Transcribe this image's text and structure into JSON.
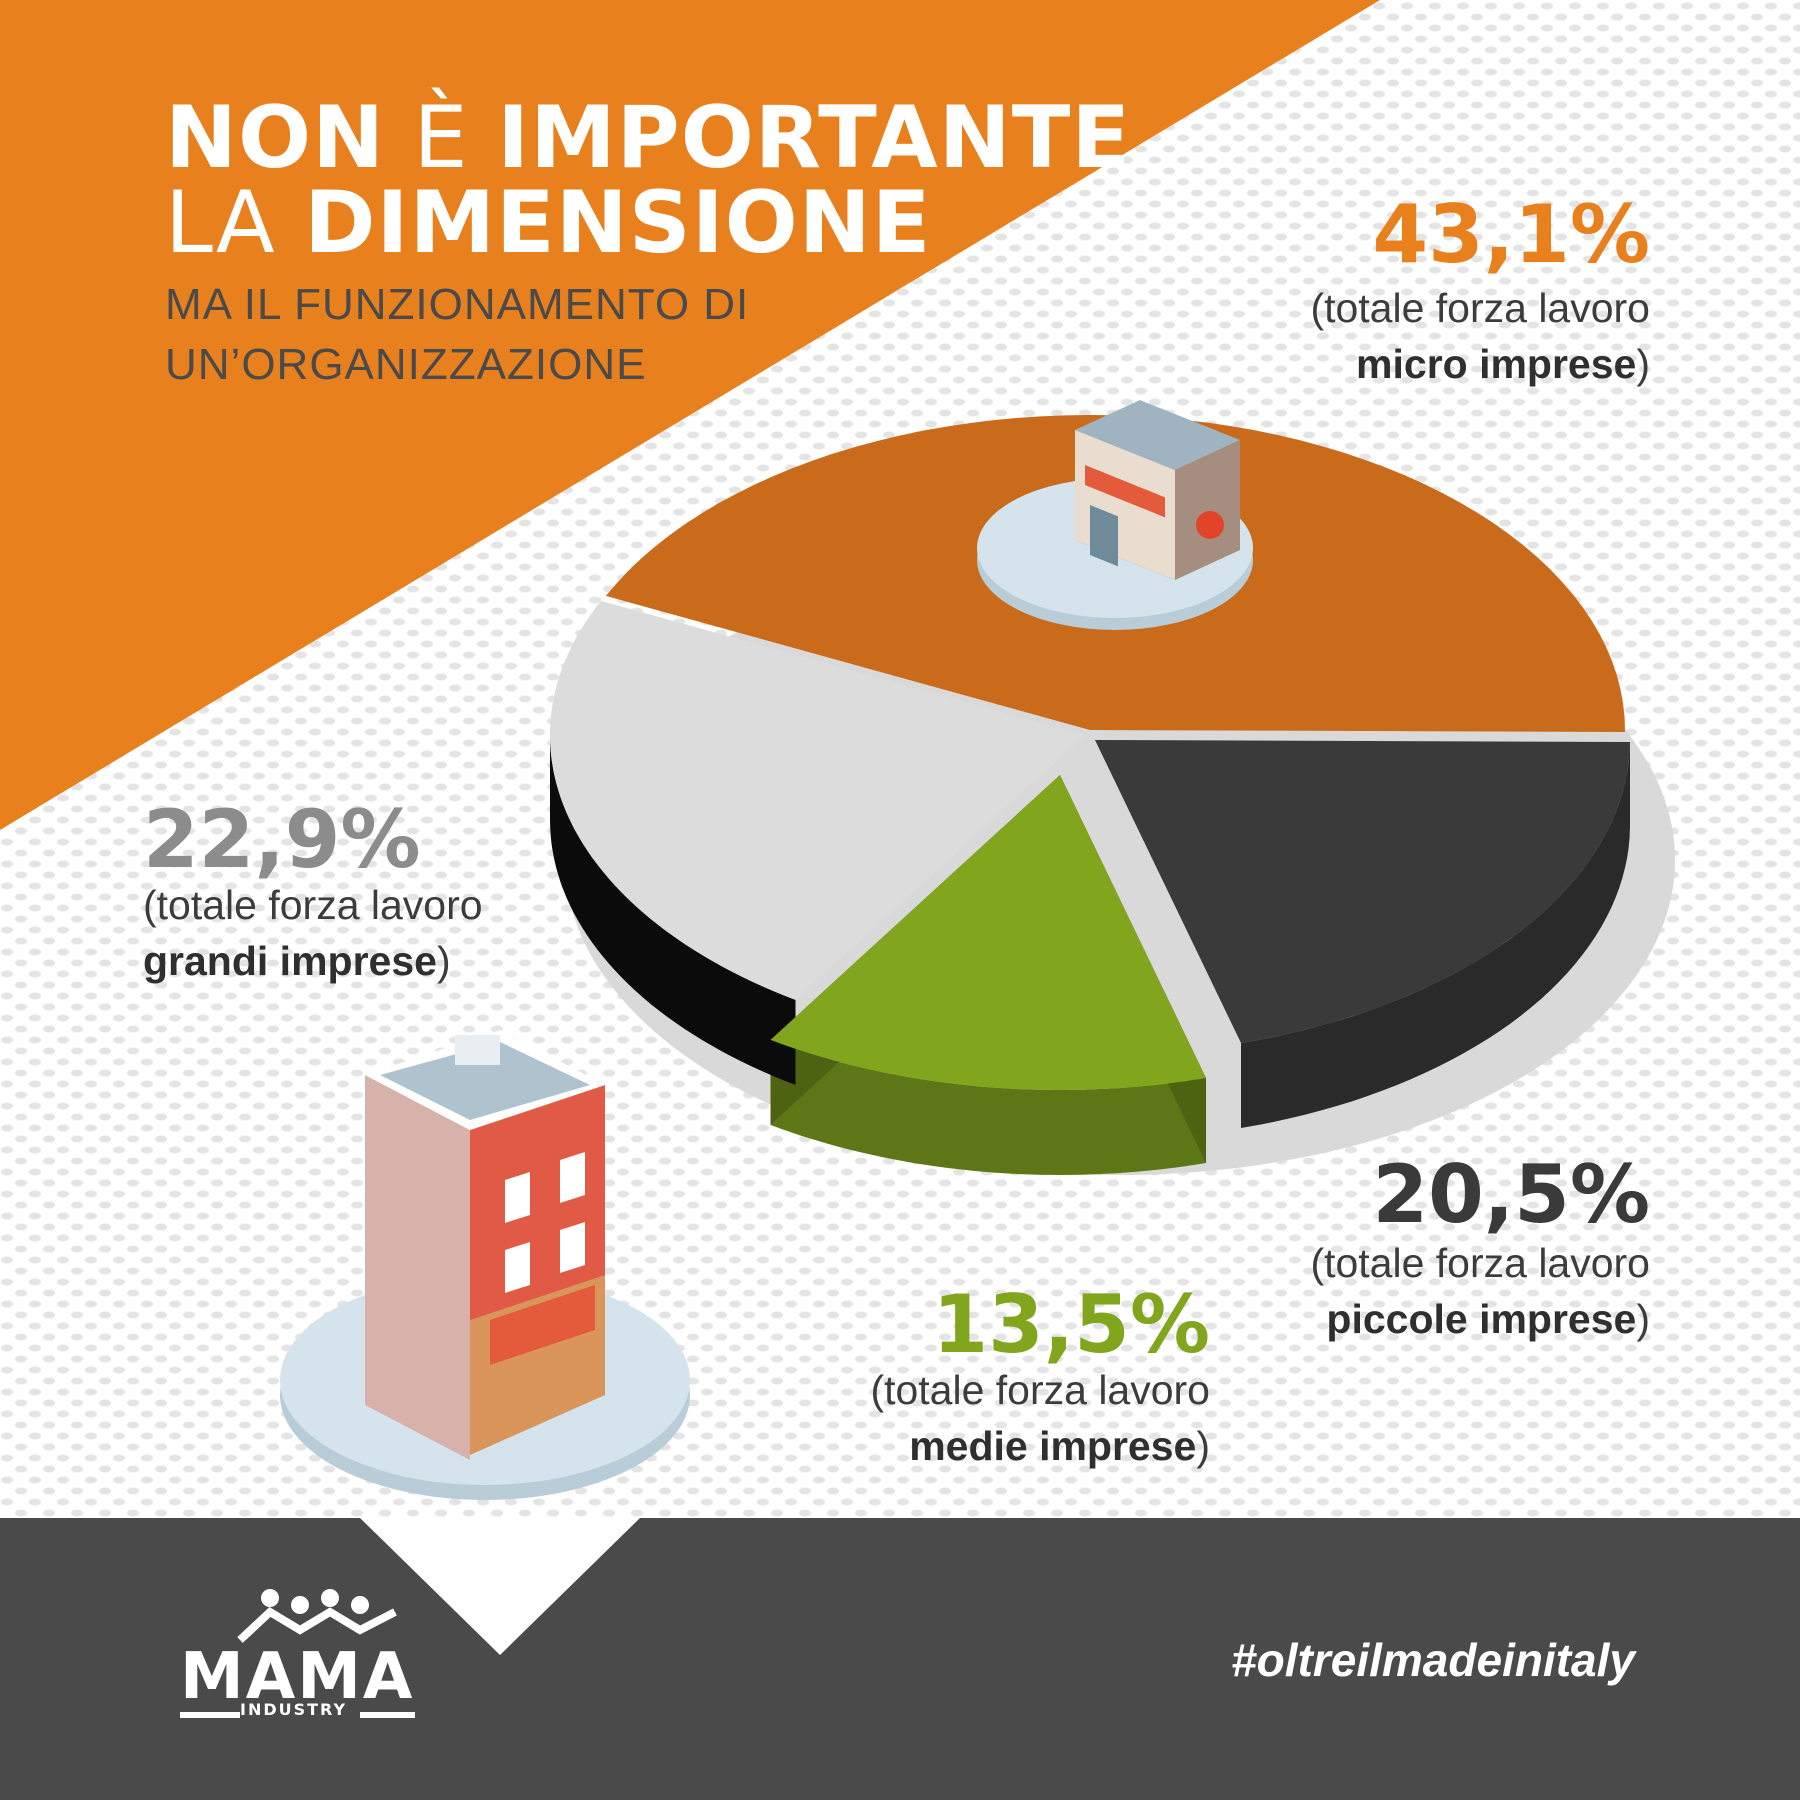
{
  "header": {
    "title_line1_bold_a": "NON",
    "title_line1_light": "È",
    "title_line1_bold_b": "IMPORTANTE",
    "title_line2_light": "LA",
    "title_line2_bold": "DIMENSIONE",
    "subtitle_line1": "MA IL FUNZIONAMENTO DI",
    "subtitle_line2": "UN’ORGANIZZAZIONE"
  },
  "colors": {
    "orange": "#E8801E",
    "orange_slice": "#C96B1A",
    "dark_slice": "#3A3A3A",
    "light_slice": "#DCDCDC",
    "green_slice": "#82A51E",
    "footer": "#4A4A4A"
  },
  "labels": {
    "prefix": "(totale forza lavoro",
    "micro_pct": "43,1%",
    "micro_name": "micro imprese",
    "grandi_pct": "22,9%",
    "grandi_name": "grandi imprese",
    "piccole_pct": "20,5%",
    "piccole_name": "piccole imprese",
    "medie_pct": "13,5%",
    "medie_name": "medie imprese",
    "close": ")"
  },
  "chart_data": {
    "type": "pie",
    "categories": [
      "micro imprese",
      "piccole imprese",
      "medie imprese",
      "grandi imprese"
    ],
    "values": [
      43.1,
      20.5,
      13.5,
      22.9
    ],
    "colors": [
      "#C96B1A",
      "#3A3A3A",
      "#82A51E",
      "#DCDCDC"
    ]
  },
  "icons": {
    "shop": "shop-building-icon",
    "franchise": "franchise-building-icon",
    "logo": "mama-industry-logo"
  },
  "footer": {
    "logo_text": "MAMA",
    "logo_sub": "INDUSTRY",
    "hashtag": "#oltreilmadeinitaly"
  }
}
